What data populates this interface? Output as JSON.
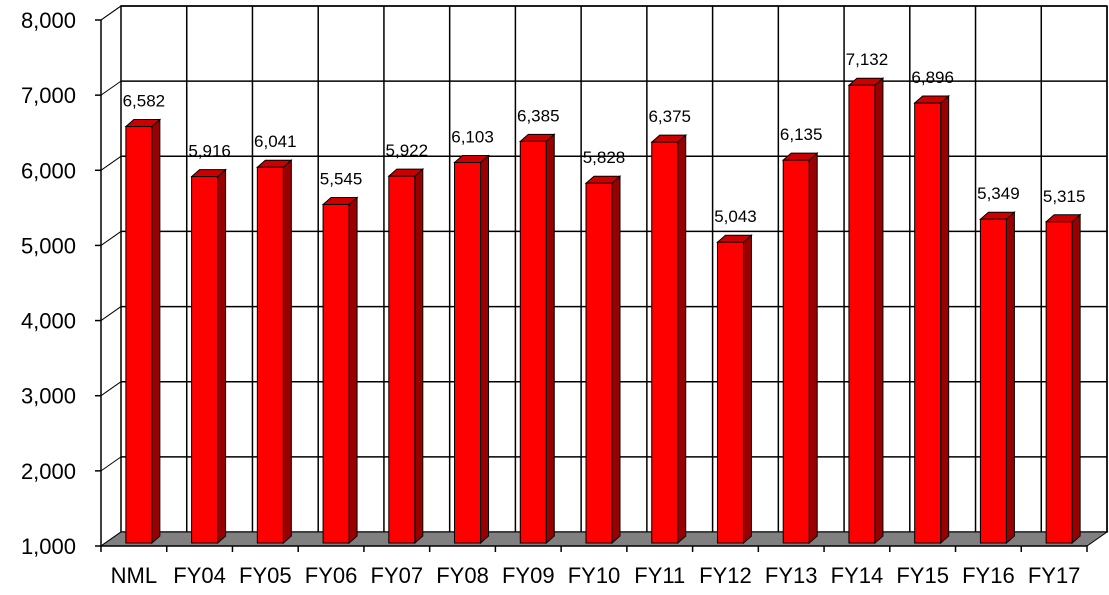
{
  "chart_data": {
    "type": "bar",
    "title": "",
    "xlabel": "",
    "ylabel": "",
    "categories": [
      "NML",
      "FY04",
      "FY05",
      "FY06",
      "FY07",
      "FY08",
      "FY09",
      "FY10",
      "FY11",
      "FY12",
      "FY13",
      "FY14",
      "FY15",
      "FY16",
      "FY17"
    ],
    "values": [
      6582,
      5916,
      6041,
      5545,
      5922,
      6103,
      6385,
      5828,
      6375,
      5043,
      6135,
      7132,
      6896,
      5349,
      5315
    ],
    "data_labels": [
      "6,582",
      "5,916",
      "6,041",
      "5,545",
      "5,922",
      "6,103",
      "6,385",
      "5,828",
      "6,375",
      "5,043",
      "6,135",
      "7,132",
      "6,896",
      "5,349",
      "5,315"
    ],
    "ylim": [
      1000,
      8000
    ],
    "yticks": [
      1000,
      2000,
      3000,
      4000,
      5000,
      6000,
      7000,
      8000
    ],
    "ytick_labels": [
      "1,000",
      "2,000",
      "3,000",
      "4,000",
      "5,000",
      "6,000",
      "7,000",
      "8,000"
    ],
    "grid": true,
    "legend": "none",
    "style": "3d",
    "colors": {
      "bar_front": "#ff0000",
      "bar_side": "#990000",
      "bar_top": "#cc0000",
      "floor": "#808080",
      "wall": "#ffffff",
      "grid": "#000000"
    }
  }
}
